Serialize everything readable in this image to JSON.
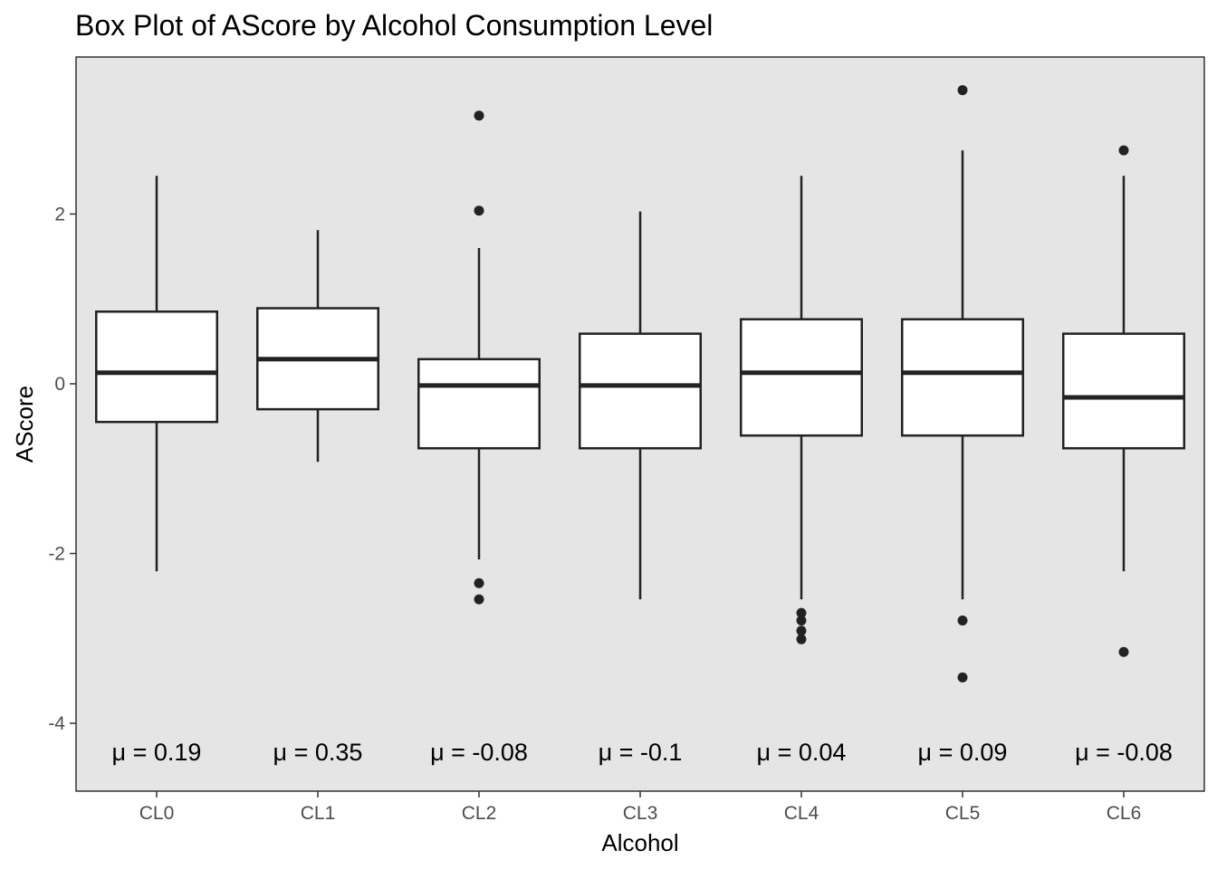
{
  "chart_data": {
    "type": "box",
    "title": "Box Plot of AScore by Alcohol Consumption Level",
    "xlabel": "Alcohol",
    "ylabel": "AScore",
    "ylim": [
      -4.8,
      3.85
    ],
    "yticks": [
      -4,
      -2,
      0,
      2
    ],
    "ytick_labels": [
      "-4",
      "-2",
      "0",
      "2"
    ],
    "grid": false,
    "legend": "none",
    "categories": [
      "CL0",
      "CL1",
      "CL2",
      "CL3",
      "CL4",
      "CL5",
      "CL6"
    ],
    "boxes": [
      {
        "category": "CL0",
        "whisker_low": -2.21,
        "q1": -0.45,
        "median": 0.13,
        "q3": 0.85,
        "whisker_high": 2.45,
        "outliers": [],
        "mean_label": "μ = 0.19"
      },
      {
        "category": "CL1",
        "whisker_low": -0.92,
        "q1": -0.3,
        "median": 0.29,
        "q3": 0.89,
        "whisker_high": 1.81,
        "outliers": [],
        "mean_label": "μ = 0.35"
      },
      {
        "category": "CL2",
        "whisker_low": -2.07,
        "q1": -0.76,
        "median": -0.02,
        "q3": 0.29,
        "whisker_high": 1.6,
        "outliers": [
          3.16,
          2.04,
          -2.35,
          -2.54
        ],
        "mean_label": "μ = -0.08"
      },
      {
        "category": "CL3",
        "whisker_low": -2.54,
        "q1": -0.76,
        "median": -0.02,
        "q3": 0.59,
        "whisker_high": 2.03,
        "outliers": [],
        "mean_label": "μ = -0.1"
      },
      {
        "category": "CL4",
        "whisker_low": -2.54,
        "q1": -0.61,
        "median": 0.13,
        "q3": 0.76,
        "whisker_high": 2.45,
        "outliers": [
          -2.7,
          -2.79,
          -2.91,
          -3.01
        ],
        "mean_label": "μ = 0.04"
      },
      {
        "category": "CL5",
        "whisker_low": -2.54,
        "q1": -0.61,
        "median": 0.13,
        "q3": 0.76,
        "whisker_high": 2.75,
        "outliers": [
          3.46,
          -2.79,
          -3.46
        ],
        "mean_label": "μ = 0.09"
      },
      {
        "category": "CL6",
        "whisker_low": -2.21,
        "q1": -0.76,
        "median": -0.16,
        "q3": 0.59,
        "whisker_high": 2.45,
        "outliers": [
          2.75,
          -3.16
        ],
        "mean_label": "μ = -0.08"
      }
    ],
    "colors": {
      "panel": "#e5e5e5",
      "box_fill": "#ffffff",
      "stroke": "#222222",
      "outlier": "#222222"
    }
  }
}
